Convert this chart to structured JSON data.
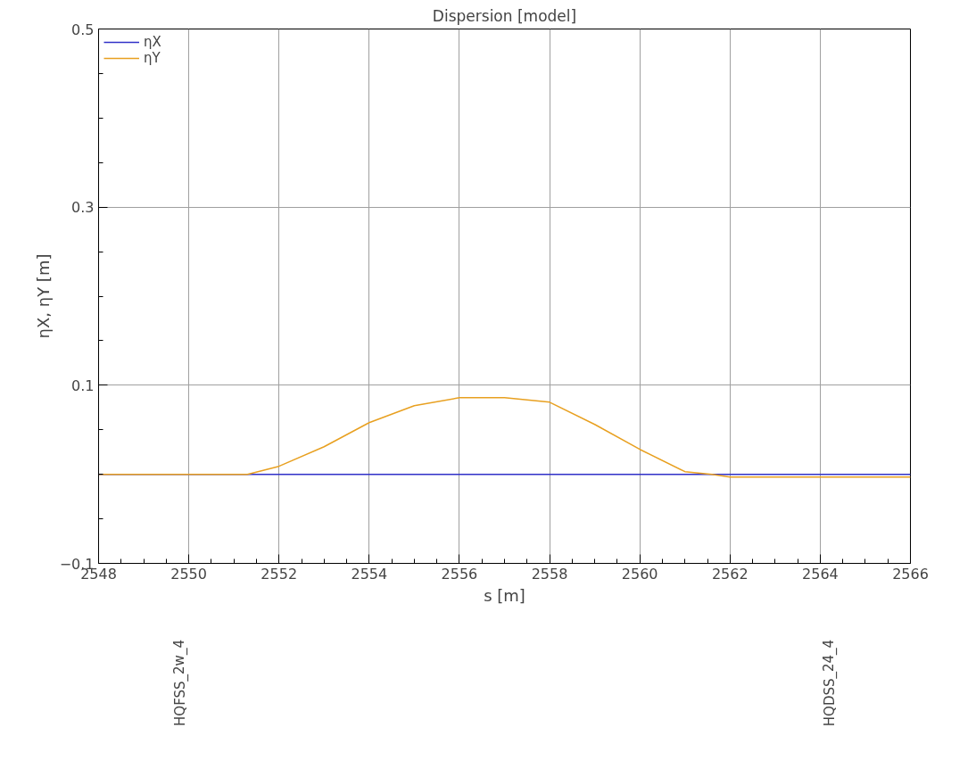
{
  "chart_data": [
    {
      "type": "line",
      "title": "Dispersion [model]",
      "xlabel": "s [m]",
      "ylabel": "ηX, ηY [m]",
      "xlim": [
        2548,
        2566
      ],
      "ylim": [
        -0.1,
        0.5
      ],
      "xticks": [
        2548,
        2550,
        2552,
        2554,
        2556,
        2558,
        2560,
        2562,
        2564,
        2566
      ],
      "yticks": [
        {
          "value": -0.1,
          "label": "−0.1"
        },
        0.1,
        0.3,
        0.5
      ],
      "grid": true,
      "legend": "top left",
      "marker": "none",
      "line_style": "solid",
      "series": [
        {
          "name": "ηX",
          "color": "#3030c8",
          "x": [
            2548,
            2566
          ],
          "values": [
            0,
            0
          ]
        },
        {
          "name": "ηY",
          "color": "#e8a020",
          "x": [
            2548,
            2551.3,
            2552,
            2553,
            2554,
            2555,
            2556,
            2557,
            2558,
            2559,
            2560,
            2561,
            2561.6,
            2562,
            2566
          ],
          "values": [
            0,
            0,
            0.009,
            0.031,
            0.058,
            0.077,
            0.086,
            0.086,
            0.081,
            0.056,
            0.028,
            0.003,
            0,
            -0.003,
            -0.003
          ]
        }
      ]
    },
    {
      "type": "other",
      "annotations": [
        "HQFSS_2w_4",
        "HQDSS_24_4"
      ]
    }
  ]
}
